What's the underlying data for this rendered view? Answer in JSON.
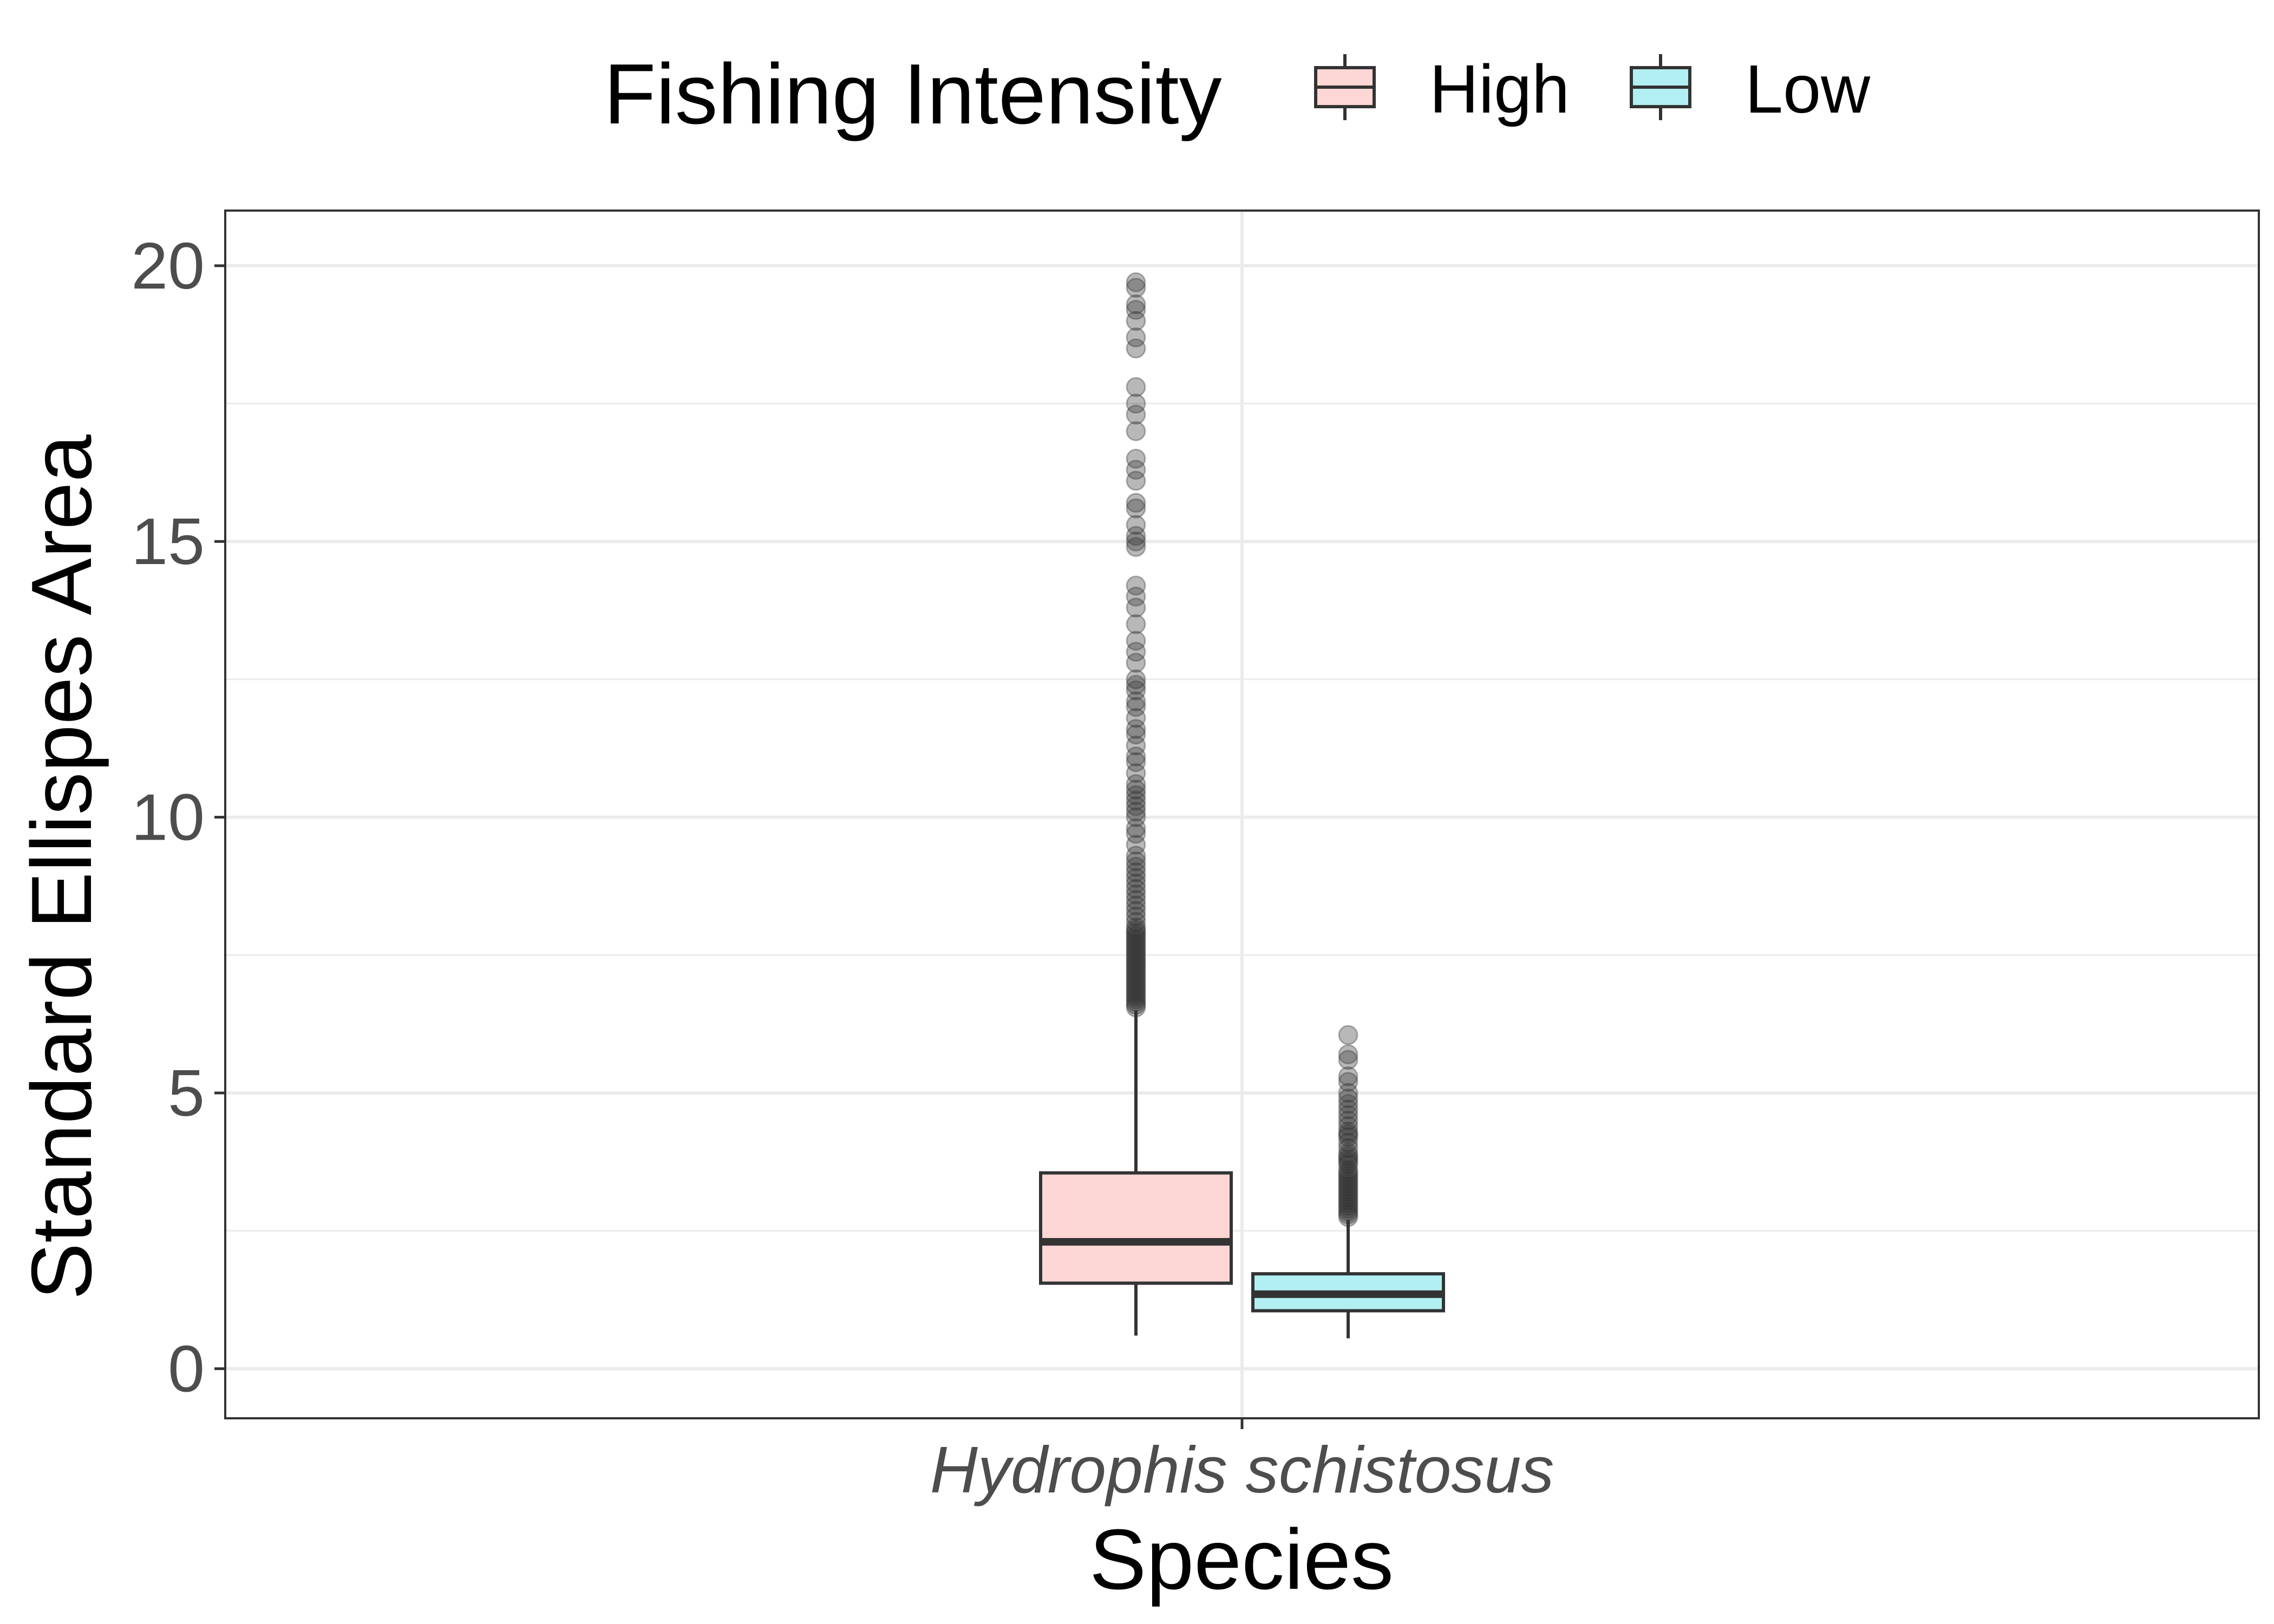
{
  "chart_data": {
    "type": "box",
    "xlabel": "Species",
    "ylabel": "Standard Ellispes Area",
    "categories": [
      "Hydrophis schistosus"
    ],
    "ylim": [
      -0.9,
      21
    ],
    "yticks": [
      0,
      5,
      10,
      15,
      20
    ],
    "ytick_labels": [
      "0",
      "5",
      "10",
      "15",
      "20"
    ],
    "grid": true,
    "legend": {
      "title": "Fishing Intensity",
      "position": "top",
      "entries": [
        "High",
        "Low"
      ]
    },
    "series": [
      {
        "name": "High",
        "color": "#fdd7d5",
        "category": "Hydrophis schistosus",
        "whisker_low": 0.6,
        "q1": 1.55,
        "median": 2.3,
        "q3": 3.55,
        "whisker_high": 6.5,
        "outliers": [
          6.55,
          6.6,
          6.65,
          6.7,
          6.75,
          6.8,
          6.85,
          6.9,
          6.95,
          7.0,
          7.05,
          7.1,
          7.15,
          7.2,
          7.25,
          7.3,
          7.35,
          7.4,
          7.45,
          7.5,
          7.55,
          7.6,
          7.65,
          7.7,
          7.75,
          7.8,
          7.85,
          7.9,
          7.95,
          8.0,
          8.1,
          8.2,
          8.3,
          8.4,
          8.5,
          8.6,
          8.7,
          8.8,
          8.9,
          9.0,
          9.1,
          9.2,
          9.3,
          9.5,
          9.7,
          9.8,
          10.0,
          10.1,
          10.2,
          10.3,
          10.4,
          10.5,
          10.6,
          10.8,
          11.0,
          11.1,
          11.3,
          11.5,
          11.6,
          11.8,
          12.0,
          12.1,
          12.3,
          12.4,
          12.5,
          12.8,
          13.0,
          13.2,
          13.5,
          13.8,
          14.0,
          14.2,
          14.9,
          15.0,
          15.1,
          15.3,
          15.6,
          15.7,
          16.1,
          16.3,
          16.5,
          17.0,
          17.3,
          17.5,
          17.8,
          18.5,
          18.7,
          19.0,
          19.2,
          19.3,
          19.6,
          19.7
        ]
      },
      {
        "name": "Low",
        "color": "#b2eff2",
        "category": "Hydrophis schistosus",
        "whisker_low": 0.55,
        "q1": 1.05,
        "median": 1.35,
        "q3": 1.72,
        "whisker_high": 2.7,
        "outliers": [
          2.75,
          2.8,
          2.85,
          2.9,
          2.95,
          3.0,
          3.05,
          3.1,
          3.15,
          3.2,
          3.25,
          3.3,
          3.35,
          3.4,
          3.45,
          3.5,
          3.55,
          3.6,
          3.7,
          3.75,
          3.8,
          3.85,
          3.9,
          4.0,
          4.1,
          4.2,
          4.25,
          4.3,
          4.4,
          4.5,
          4.6,
          4.7,
          4.8,
          4.9,
          5.0,
          5.2,
          5.3,
          5.6,
          5.7,
          6.05
        ]
      }
    ]
  }
}
